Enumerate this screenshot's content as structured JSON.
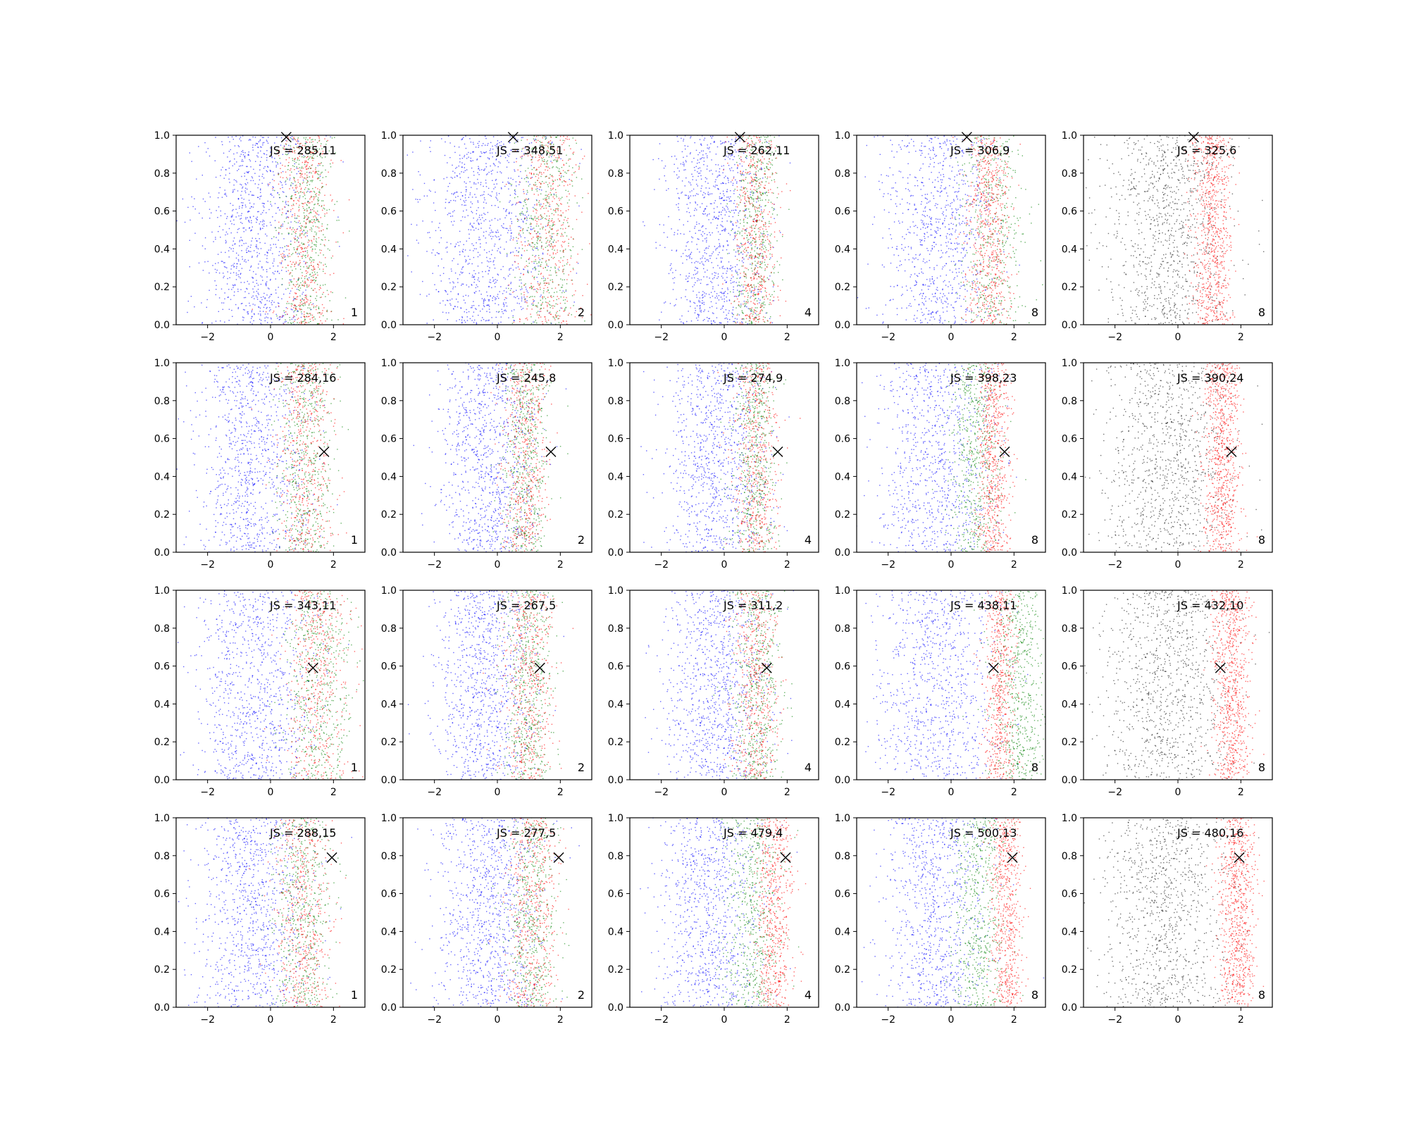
{
  "chart_data": {
    "type": "scatter",
    "layout": {
      "rows": 4,
      "cols": 5
    },
    "xlim": [
      -3,
      3
    ],
    "ylim": [
      0,
      1
    ],
    "xticks": [
      "−2",
      "0",
      "2"
    ],
    "yticks": [
      "0.0",
      "0.2",
      "0.4",
      "0.6",
      "0.8",
      "1.0"
    ],
    "xtick_values": [
      -2,
      0,
      2
    ],
    "ytick_values": [
      0,
      0.2,
      0.4,
      0.6,
      0.8,
      1.0
    ],
    "colors": {
      "blue": "#0000ff",
      "green": "#008000",
      "red": "#ff0000",
      "gray": "#000000",
      "marker": "#000000"
    },
    "series_names": [
      "blue",
      "green",
      "red"
    ],
    "row_markers": [
      {
        "x": 0.5,
        "y": 0.99
      },
      {
        "x": 1.7,
        "y": 0.53
      },
      {
        "x": 1.35,
        "y": 0.59
      },
      {
        "x": 1.95,
        "y": 0.79
      }
    ],
    "panels": [
      {
        "label": "JS = 285,11",
        "corner": "1",
        "style": "mixed",
        "series": [
          {
            "color": "blue",
            "mu": -0.5,
            "sigma": 0.85,
            "n": 900
          },
          {
            "color": "green",
            "mu": 1.2,
            "sigma": 0.42,
            "n": 520
          },
          {
            "color": "red",
            "mu": 1.1,
            "sigma": 0.42,
            "n": 520
          }
        ]
      },
      {
        "label": "JS = 348,51",
        "corner": "2",
        "style": "mixed",
        "series": [
          {
            "color": "blue",
            "mu": -0.3,
            "sigma": 1.0,
            "n": 950
          },
          {
            "color": "green",
            "mu": 1.6,
            "sigma": 0.5,
            "n": 500
          },
          {
            "color": "red",
            "mu": 1.6,
            "sigma": 0.5,
            "n": 500
          }
        ]
      },
      {
        "label": "JS = 262,11",
        "corner": "4",
        "style": "mixed",
        "series": [
          {
            "color": "blue",
            "mu": -0.3,
            "sigma": 0.8,
            "n": 900
          },
          {
            "color": "green",
            "mu": 1.0,
            "sigma": 0.35,
            "n": 520
          },
          {
            "color": "red",
            "mu": 1.0,
            "sigma": 0.35,
            "n": 520
          }
        ]
      },
      {
        "label": "JS = 306,9",
        "corner": "8",
        "style": "mixed",
        "series": [
          {
            "color": "blue",
            "mu": -0.4,
            "sigma": 0.85,
            "n": 850
          },
          {
            "color": "green",
            "mu": 1.3,
            "sigma": 0.55,
            "n": 450
          },
          {
            "color": "red",
            "mu": 1.2,
            "sigma": 0.35,
            "n": 650
          }
        ]
      },
      {
        "label": "JS = 325,6",
        "corner": "8",
        "style": "gray",
        "series": [
          {
            "color": "gray",
            "mu": -0.4,
            "sigma": 1.0,
            "n": 950
          },
          {
            "color": "red",
            "mu": 1.1,
            "sigma": 0.3,
            "n": 800
          }
        ]
      },
      {
        "label": "JS = 284,16",
        "corner": "1",
        "style": "mixed",
        "series": [
          {
            "color": "blue",
            "mu": -0.6,
            "sigma": 0.85,
            "n": 900
          },
          {
            "color": "green",
            "mu": 1.1,
            "sigma": 0.45,
            "n": 520
          },
          {
            "color": "red",
            "mu": 1.1,
            "sigma": 0.45,
            "n": 520
          }
        ]
      },
      {
        "label": "JS = 245,8",
        "corner": "2",
        "style": "mixed",
        "series": [
          {
            "color": "blue",
            "mu": -0.3,
            "sigma": 0.75,
            "n": 900
          },
          {
            "color": "green",
            "mu": 0.9,
            "sigma": 0.35,
            "n": 520
          },
          {
            "color": "red",
            "mu": 0.9,
            "sigma": 0.35,
            "n": 520
          }
        ]
      },
      {
        "label": "JS = 274,9",
        "corner": "4",
        "style": "mixed",
        "series": [
          {
            "color": "blue",
            "mu": -0.3,
            "sigma": 0.8,
            "n": 900
          },
          {
            "color": "green",
            "mu": 1.0,
            "sigma": 0.35,
            "n": 520
          },
          {
            "color": "red",
            "mu": 1.0,
            "sigma": 0.35,
            "n": 520
          }
        ]
      },
      {
        "label": "JS = 398,23",
        "corner": "8",
        "style": "mixed",
        "series": [
          {
            "color": "blue",
            "mu": -0.5,
            "sigma": 0.9,
            "n": 850
          },
          {
            "color": "green",
            "mu": 0.8,
            "sigma": 0.4,
            "n": 550
          },
          {
            "color": "red",
            "mu": 1.35,
            "sigma": 0.28,
            "n": 650
          }
        ]
      },
      {
        "label": "JS = 390,24",
        "corner": "8",
        "style": "gray",
        "series": [
          {
            "color": "gray",
            "mu": -0.3,
            "sigma": 1.0,
            "n": 950
          },
          {
            "color": "red",
            "mu": 1.4,
            "sigma": 0.3,
            "n": 800
          }
        ]
      },
      {
        "label": "JS = 343,11",
        "corner": "1",
        "style": "mixed",
        "series": [
          {
            "color": "blue",
            "mu": -0.5,
            "sigma": 0.9,
            "n": 900
          },
          {
            "color": "green",
            "mu": 1.5,
            "sigma": 0.55,
            "n": 520
          },
          {
            "color": "red",
            "mu": 1.5,
            "sigma": 0.55,
            "n": 520
          }
        ]
      },
      {
        "label": "JS = 267,5",
        "corner": "2",
        "style": "mixed",
        "series": [
          {
            "color": "blue",
            "mu": -0.4,
            "sigma": 0.8,
            "n": 900
          },
          {
            "color": "green",
            "mu": 1.0,
            "sigma": 0.4,
            "n": 520
          },
          {
            "color": "red",
            "mu": 1.0,
            "sigma": 0.4,
            "n": 520
          }
        ]
      },
      {
        "label": "JS = 311,2",
        "corner": "4",
        "style": "mixed",
        "series": [
          {
            "color": "blue",
            "mu": -0.3,
            "sigma": 0.8,
            "n": 900
          },
          {
            "color": "green",
            "mu": 1.1,
            "sigma": 0.4,
            "n": 520
          },
          {
            "color": "red",
            "mu": 1.0,
            "sigma": 0.35,
            "n": 520
          }
        ]
      },
      {
        "label": "JS = 438,11",
        "corner": "8",
        "style": "mixed",
        "series": [
          {
            "color": "blue",
            "mu": -0.5,
            "sigma": 0.95,
            "n": 850
          },
          {
            "color": "green",
            "mu": 2.2,
            "sigma": 0.45,
            "n": 600
          },
          {
            "color": "red",
            "mu": 1.55,
            "sigma": 0.25,
            "n": 600
          }
        ]
      },
      {
        "label": "JS = 432,10",
        "corner": "8",
        "style": "gray",
        "series": [
          {
            "color": "gray",
            "mu": -0.3,
            "sigma": 1.05,
            "n": 950
          },
          {
            "color": "red",
            "mu": 1.7,
            "sigma": 0.3,
            "n": 800
          }
        ]
      },
      {
        "label": "JS = 288,15",
        "corner": "1",
        "style": "mixed",
        "series": [
          {
            "color": "blue",
            "mu": -0.6,
            "sigma": 0.85,
            "n": 900
          },
          {
            "color": "green",
            "mu": 1.0,
            "sigma": 0.45,
            "n": 520
          },
          {
            "color": "red",
            "mu": 1.0,
            "sigma": 0.45,
            "n": 520
          }
        ]
      },
      {
        "label": "JS = 277,5",
        "corner": "2",
        "style": "mixed",
        "series": [
          {
            "color": "blue",
            "mu": -0.3,
            "sigma": 0.8,
            "n": 900
          },
          {
            "color": "green",
            "mu": 1.1,
            "sigma": 0.4,
            "n": 520
          },
          {
            "color": "red",
            "mu": 1.1,
            "sigma": 0.4,
            "n": 520
          }
        ]
      },
      {
        "label": "JS = 479,4",
        "corner": "4",
        "style": "mixed",
        "series": [
          {
            "color": "blue",
            "mu": -0.5,
            "sigma": 0.8,
            "n": 850
          },
          {
            "color": "green",
            "mu": 0.9,
            "sigma": 0.45,
            "n": 550
          },
          {
            "color": "red",
            "mu": 1.6,
            "sigma": 0.3,
            "n": 600
          }
        ]
      },
      {
        "label": "JS = 500,13",
        "corner": "8",
        "style": "mixed",
        "series": [
          {
            "color": "blue",
            "mu": -0.5,
            "sigma": 0.85,
            "n": 850
          },
          {
            "color": "green",
            "mu": 0.9,
            "sigma": 0.4,
            "n": 550
          },
          {
            "color": "red",
            "mu": 1.75,
            "sigma": 0.25,
            "n": 620
          }
        ]
      },
      {
        "label": "JS = 480,16",
        "corner": "8",
        "style": "gray",
        "series": [
          {
            "color": "gray",
            "mu": -0.4,
            "sigma": 0.95,
            "n": 950
          },
          {
            "color": "red",
            "mu": 1.9,
            "sigma": 0.3,
            "n": 800
          }
        ]
      }
    ]
  }
}
